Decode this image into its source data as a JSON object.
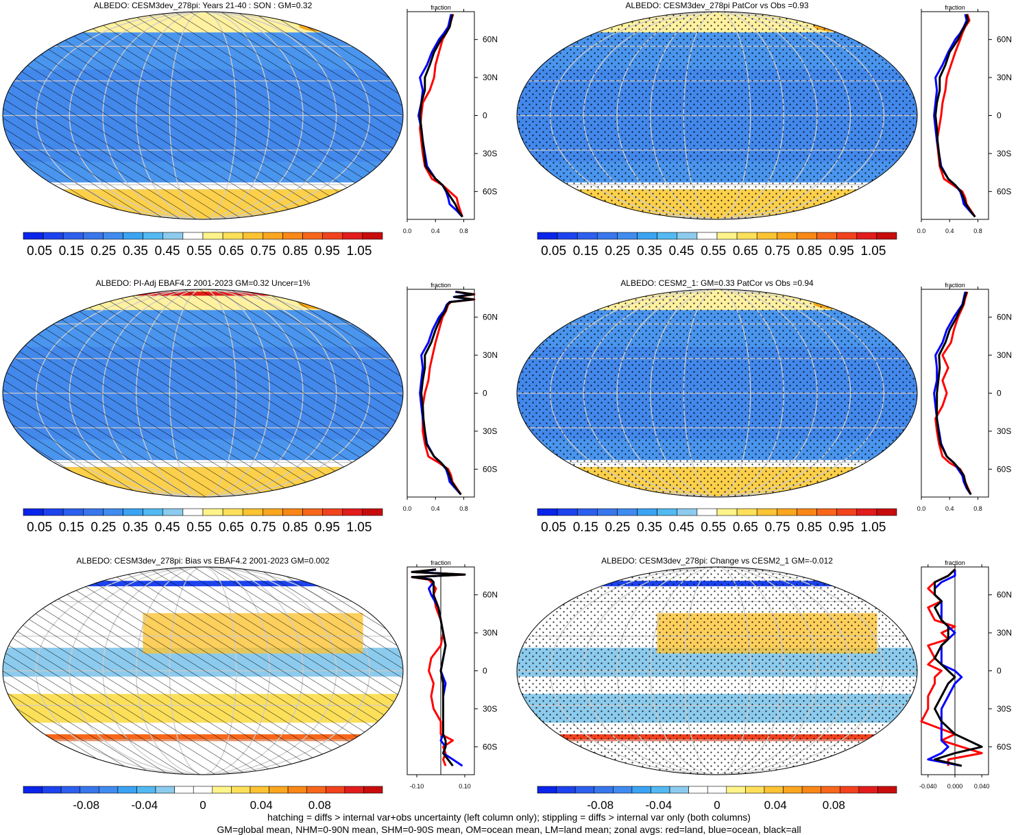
{
  "footnotes": [
    "hatching = diffs > internal var+obs uncertainty (left column only); stippling = diffs > internal var only (both columns)",
    "GM=global mean, NHM=0-90N mean, SHM=0-90S mean, OM=ocean mean, LM=land mean; zonal avgs: red=land, blue=ocean, black=all"
  ],
  "colors": {
    "land": "#ff0000",
    "ocean": "#0000ff",
    "all": "#000000",
    "grid": "#cccccc"
  },
  "lat_ticks": [
    "60N",
    "30N",
    "0",
    "30S",
    "60S"
  ],
  "zonal_axis_title": "fraction",
  "colorbars": {
    "abs": {
      "colors": [
        "#0a24ea",
        "#1c43ee",
        "#2c5fee",
        "#3876ec",
        "#3f8bf0",
        "#3aa4f2",
        "#52b9f2",
        "#8ccbed",
        "#ffffff",
        "#fff48a",
        "#fde05a",
        "#fcc333",
        "#fba61f",
        "#f98716",
        "#f7661a",
        "#f2421d",
        "#e21c1c",
        "#c80c0c"
      ],
      "labels": [
        "0.05",
        "0.15",
        "0.25",
        "0.35",
        "0.45",
        "0.55",
        "0.65",
        "0.75",
        "0.85",
        "0.95",
        "1.05"
      ]
    },
    "diff": {
      "colors": [
        "#0a24ea",
        "#1c43ee",
        "#2c5fee",
        "#3876ec",
        "#3f8bf0",
        "#3aa4f2",
        "#52b9f2",
        "#8ccbed",
        "#ffffff",
        "#ffffff",
        "#fff48a",
        "#fde05a",
        "#fcc333",
        "#fba61f",
        "#f98716",
        "#f7661a",
        "#f2421d",
        "#e21c1c",
        "#c80c0c"
      ],
      "labels": [
        "-0.08",
        "-0.04",
        "0",
        "0.04",
        "0.08"
      ]
    }
  },
  "chart_data": [
    {
      "type": "heatmap",
      "panel": "row1-left",
      "title": "ALBEDO: CESM3dev_278pi: Years 21-40 : SON : GM=0.32",
      "pattern": "hatch",
      "colorbar": "abs",
      "zonal": {
        "xlim": [
          0,
          0.95
        ],
        "xticks": [
          "0.0",
          "0.4",
          "0.8"
        ],
        "xtick_values": [
          0,
          0.4,
          0.8
        ],
        "lat": [
          80,
          75,
          70,
          65,
          60,
          50,
          40,
          30,
          20,
          10,
          0,
          -10,
          -20,
          -30,
          -40,
          -50,
          -55,
          -60,
          -65,
          -70,
          -75,
          -80
        ],
        "land": [
          0.65,
          0.62,
          0.6,
          0.55,
          0.5,
          0.45,
          0.4,
          0.38,
          0.32,
          0.22,
          0.2,
          0.18,
          0.2,
          0.22,
          0.25,
          0.35,
          0.5,
          0.6,
          0.7,
          0.72,
          0.75,
          0.78
        ],
        "ocean": [
          0.62,
          0.6,
          0.58,
          0.52,
          0.45,
          0.35,
          0.28,
          0.18,
          0.22,
          0.2,
          0.16,
          0.2,
          0.22,
          0.25,
          0.28,
          0.4,
          0.5,
          0.55,
          0.58,
          0.6,
          0.7,
          0.78
        ],
        "all": [
          0.64,
          0.62,
          0.6,
          0.55,
          0.48,
          0.38,
          0.32,
          0.25,
          0.25,
          0.2,
          0.18,
          0.2,
          0.22,
          0.24,
          0.26,
          0.4,
          0.5,
          0.56,
          0.62,
          0.68,
          0.72,
          0.78
        ]
      }
    },
    {
      "type": "heatmap",
      "panel": "row1-right",
      "title": "ALBEDO: CESM3dev_278pi PatCor vs Obs =0.93",
      "pattern": "stipple",
      "colorbar": "abs",
      "zonal": {
        "xlim": [
          0,
          0.95
        ],
        "xticks": [
          "0.0",
          "0.4",
          "0.8"
        ],
        "xtick_values": [
          0,
          0.4,
          0.8
        ],
        "lat": [
          80,
          75,
          70,
          65,
          60,
          50,
          40,
          30,
          20,
          10,
          0,
          -10,
          -20,
          -30,
          -40,
          -50,
          -55,
          -60,
          -65,
          -70,
          -75,
          -80
        ],
        "land": [
          0.65,
          0.68,
          0.62,
          0.58,
          0.55,
          0.48,
          0.42,
          0.36,
          0.34,
          0.3,
          0.28,
          0.25,
          0.22,
          0.24,
          0.26,
          0.32,
          0.45,
          0.58,
          0.62,
          0.64,
          0.7,
          0.76
        ],
        "ocean": [
          0.62,
          0.64,
          0.6,
          0.55,
          0.48,
          0.38,
          0.3,
          0.2,
          0.22,
          0.2,
          0.18,
          0.2,
          0.22,
          0.25,
          0.28,
          0.38,
          0.48,
          0.55,
          0.58,
          0.6,
          0.68,
          0.76
        ],
        "all": [
          0.64,
          0.66,
          0.61,
          0.56,
          0.52,
          0.4,
          0.34,
          0.26,
          0.26,
          0.22,
          0.2,
          0.22,
          0.23,
          0.25,
          0.27,
          0.38,
          0.48,
          0.56,
          0.6,
          0.63,
          0.69,
          0.76
        ]
      }
    },
    {
      "type": "heatmap",
      "panel": "row2-left",
      "title": "ALBEDO: PI-Adj EBAF4.2 2001-2023 GM=0.32 Uncer=1%",
      "pattern": "hatch",
      "colorbar": "abs",
      "zonal": {
        "xlim": [
          0,
          0.95
        ],
        "xticks": [
          "0.0",
          "0.4",
          "0.8"
        ],
        "xtick_values": [
          0,
          0.4,
          0.8
        ],
        "lat": [
          80,
          78,
          76,
          74,
          72,
          70,
          65,
          60,
          50,
          40,
          30,
          20,
          10,
          0,
          -10,
          -20,
          -30,
          -40,
          -50,
          -55,
          -60,
          -65,
          -70,
          -75,
          -80
        ],
        "land": [
          0.7,
          0.95,
          0.68,
          0.95,
          0.62,
          0.58,
          0.55,
          0.5,
          0.45,
          0.4,
          0.36,
          0.32,
          0.3,
          0.25,
          0.22,
          0.22,
          0.22,
          0.25,
          0.3,
          0.45,
          0.58,
          0.62,
          0.64,
          0.7,
          0.76
        ],
        "ocean": [
          0.68,
          0.92,
          0.66,
          0.92,
          0.6,
          0.56,
          0.52,
          0.45,
          0.36,
          0.3,
          0.2,
          0.22,
          0.2,
          0.18,
          0.2,
          0.22,
          0.25,
          0.28,
          0.38,
          0.48,
          0.55,
          0.58,
          0.6,
          0.68,
          0.76
        ],
        "all": [
          0.69,
          0.94,
          0.67,
          0.94,
          0.61,
          0.57,
          0.54,
          0.48,
          0.4,
          0.34,
          0.25,
          0.25,
          0.22,
          0.2,
          0.22,
          0.23,
          0.25,
          0.27,
          0.38,
          0.48,
          0.56,
          0.6,
          0.63,
          0.69,
          0.76
        ]
      }
    },
    {
      "type": "heatmap",
      "panel": "row2-right",
      "title": "ALBEDO: CESM2_1: GM=0.33 PatCor vs Obs =0.94",
      "pattern": "stipple",
      "colorbar": "abs",
      "zonal": {
        "xlim": [
          0,
          0.95
        ],
        "xticks": [
          "0.0",
          "0.4",
          "0.8"
        ],
        "xtick_values": [
          0,
          0.4,
          0.8
        ],
        "lat": [
          80,
          75,
          70,
          65,
          60,
          50,
          40,
          30,
          20,
          10,
          0,
          -10,
          -20,
          -30,
          -40,
          -50,
          -55,
          -60,
          -65,
          -70,
          -75,
          -80
        ],
        "land": [
          0.65,
          0.62,
          0.6,
          0.56,
          0.52,
          0.46,
          0.42,
          0.3,
          0.38,
          0.3,
          0.36,
          0.3,
          0.2,
          0.22,
          0.25,
          0.3,
          0.4,
          0.55,
          0.6,
          0.62,
          0.66,
          0.7
        ],
        "ocean": [
          0.62,
          0.6,
          0.58,
          0.52,
          0.46,
          0.36,
          0.3,
          0.2,
          0.22,
          0.22,
          0.18,
          0.2,
          0.22,
          0.25,
          0.28,
          0.36,
          0.46,
          0.52,
          0.58,
          0.6,
          0.64,
          0.7
        ],
        "all": [
          0.64,
          0.61,
          0.59,
          0.54,
          0.5,
          0.4,
          0.34,
          0.25,
          0.26,
          0.24,
          0.22,
          0.22,
          0.22,
          0.24,
          0.27,
          0.36,
          0.46,
          0.54,
          0.6,
          0.62,
          0.65,
          0.7
        ]
      }
    },
    {
      "type": "heatmap",
      "panel": "row3-left",
      "title": "ALBEDO: CESM3dev_278pi: Bias vs EBAF4.2 2001-2023  GM=0.002",
      "pattern": "hatch",
      "colorbar": "diff",
      "zonal": {
        "xlim": [
          -0.14,
          0.14
        ],
        "xticks": [
          "-0.10",
          "0.10"
        ],
        "xtick_values": [
          -0.1,
          0.1
        ],
        "lat": [
          80,
          78,
          76,
          74,
          72,
          70,
          65,
          60,
          50,
          40,
          30,
          20,
          10,
          0,
          -10,
          -20,
          -30,
          -40,
          -50,
          -55,
          -60,
          -65,
          -70,
          -75
        ],
        "land": [
          -0.02,
          -0.12,
          0.1,
          -0.12,
          -0.05,
          -0.04,
          -0.02,
          -0.03,
          -0.02,
          0.0,
          0.01,
          0.0,
          -0.04,
          -0.05,
          -0.03,
          -0.04,
          -0.03,
          0.0,
          0.0,
          0.05,
          0.01,
          0.02,
          0.01,
          0.02
        ],
        "ocean": [
          -0.02,
          -0.1,
          0.08,
          -0.1,
          -0.04,
          -0.03,
          -0.05,
          -0.04,
          -0.01,
          0.0,
          0.01,
          0.02,
          0.01,
          0.0,
          0.02,
          0.01,
          0.01,
          0.01,
          0.01,
          0.0,
          0.02,
          0.01,
          0.05,
          0.09
        ],
        "all": [
          -0.02,
          -0.12,
          0.1,
          -0.12,
          -0.04,
          -0.03,
          -0.03,
          -0.03,
          -0.01,
          0.0,
          0.01,
          0.02,
          0.01,
          0.0,
          0.01,
          0.01,
          0.01,
          0.01,
          0.01,
          0.02,
          0.02,
          0.01,
          0.03,
          0.05
        ]
      }
    },
    {
      "type": "heatmap",
      "panel": "row3-right",
      "title": "ALBEDO: CESM3dev_278pi: Change vs CESM2_1 GM=-0.012",
      "pattern": "stipple",
      "colorbar": "diff",
      "zonal": {
        "xlim": [
          -0.05,
          0.05
        ],
        "xticks": [
          "-0.040",
          "0.000",
          "0.040"
        ],
        "xtick_values": [
          -0.04,
          0.0,
          0.04
        ],
        "lat": [
          80,
          75,
          70,
          65,
          60,
          55,
          50,
          40,
          35,
          30,
          25,
          20,
          10,
          5,
          0,
          -5,
          -10,
          -20,
          -30,
          -40,
          -50,
          -55,
          -60,
          -65,
          -70,
          -75
        ],
        "land": [
          0.0,
          -0.01,
          -0.03,
          -0.04,
          -0.03,
          -0.02,
          -0.04,
          -0.03,
          0.0,
          -0.02,
          -0.01,
          -0.04,
          -0.03,
          -0.04,
          -0.02,
          -0.03,
          -0.03,
          -0.04,
          -0.04,
          -0.05,
          0.0,
          -0.02,
          0.01,
          0.04,
          -0.01,
          -0.01
        ],
        "ocean": [
          0.0,
          0.0,
          -0.02,
          -0.03,
          -0.03,
          -0.02,
          -0.02,
          -0.02,
          -0.01,
          0.0,
          -0.01,
          -0.02,
          -0.02,
          -0.02,
          0.0,
          0.01,
          0.0,
          -0.01,
          -0.02,
          -0.02,
          -0.02,
          -0.02,
          -0.01,
          -0.02,
          -0.04,
          0.01
        ],
        "all": [
          0.0,
          -0.01,
          -0.03,
          -0.03,
          -0.03,
          -0.02,
          -0.03,
          -0.02,
          -0.01,
          -0.01,
          -0.01,
          -0.02,
          -0.03,
          -0.02,
          -0.01,
          0.0,
          -0.01,
          -0.02,
          -0.03,
          -0.02,
          0.0,
          0.02,
          0.04,
          0.0,
          -0.03,
          0.01
        ]
      }
    }
  ]
}
